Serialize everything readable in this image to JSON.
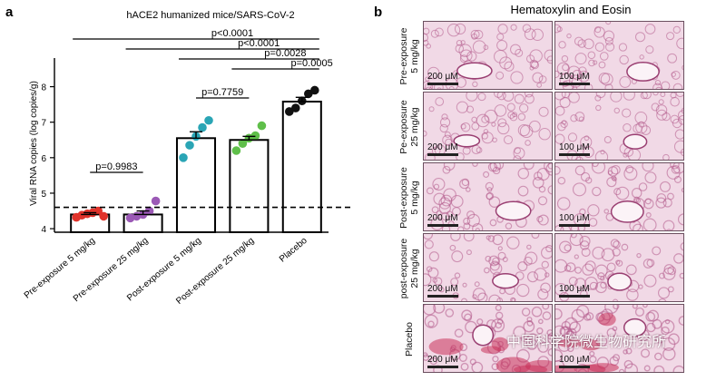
{
  "panel_a_letter": "a",
  "panel_b_letter": "b",
  "chart_data": {
    "type": "bar",
    "title": "hACE2 humanized mice/SARS-CoV-2",
    "ylabel": "Viral RNA copies (log copies/g)",
    "xlabel": "",
    "ylim": [
      3.9,
      8.5
    ],
    "yticks": [
      4,
      5,
      6,
      7,
      8
    ],
    "detection_limit": 4.6,
    "categories": [
      "Pre-exposure 5 mg/kg",
      "Pre-exposure 25 mg/kg",
      "Post-exposure 5 mg/kg",
      "Post-exposure 25 mg/kg",
      "Placebo"
    ],
    "values": [
      4.4,
      4.4,
      6.55,
      6.5,
      7.58
    ],
    "errors": [
      0.05,
      0.1,
      0.18,
      0.1,
      0.12
    ],
    "colors": [
      "#e0332b",
      "#9b59b6",
      "#2aa5b5",
      "#5fbf4a",
      "#111111"
    ],
    "points": [
      [
        4.32,
        4.38,
        4.42,
        4.45,
        4.5,
        4.35
      ],
      [
        4.3,
        4.35,
        4.4,
        4.5,
        4.78
      ],
      [
        6.0,
        6.35,
        6.6,
        6.85,
        7.05
      ],
      [
        6.2,
        6.4,
        6.55,
        6.62,
        6.9
      ],
      [
        7.3,
        7.4,
        7.6,
        7.8,
        7.9
      ]
    ],
    "comparisons": [
      {
        "from": 0,
        "to": 4,
        "label": "p<0.0001"
      },
      {
        "from": 1,
        "to": 4,
        "label": "p<0.0001"
      },
      {
        "from": 2,
        "to": 4,
        "label": "p=0.0028"
      },
      {
        "from": 3,
        "to": 4,
        "label": "p=0.0005"
      },
      {
        "from": 2,
        "to": 3,
        "label": "p=0.7759"
      },
      {
        "from": 0,
        "to": 1,
        "label": "p=0.9983"
      }
    ]
  },
  "histology": {
    "title": "Hematoxylin and Eosin",
    "rows": [
      {
        "label": "Pre-exposure\n5 mg/kg",
        "scale_left": "200 μM",
        "scale_right": "100 μM"
      },
      {
        "label": "Pe-exposure\n25 mg/kg",
        "scale_left": "200 μM",
        "scale_right": "100 μM"
      },
      {
        "label": "Post-exposure\n5 mg/kg",
        "scale_left": "200 μM",
        "scale_right": "100 μM"
      },
      {
        "label": "post-exposure\n25 mg/kg",
        "scale_left": "200 μM",
        "scale_right": "100 μM"
      },
      {
        "label": "Placebo",
        "scale_left": "200 μM",
        "scale_right": "100 μM"
      }
    ],
    "watermark": "中国科学院微生物研究所"
  }
}
